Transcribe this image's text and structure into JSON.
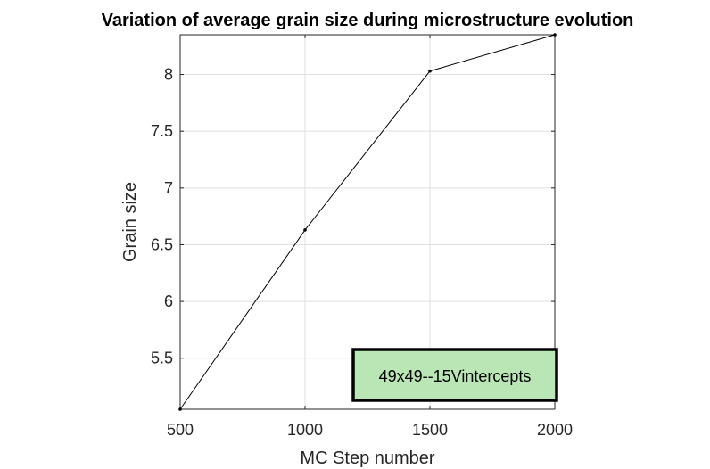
{
  "chart_data": {
    "type": "line",
    "title": "Variation of average grain size during microstructure evolution",
    "xlabel": "MC Step number",
    "ylabel": "Grain size",
    "xlim": [
      500,
      2000
    ],
    "ylim": [
      5.05,
      8.35
    ],
    "xticks": [
      500,
      1000,
      1500,
      2000
    ],
    "xtick_labels": [
      "500",
      "1000",
      "1500",
      "2000"
    ],
    "yticks": [
      5.5,
      6,
      6.5,
      7,
      7.5,
      8
    ],
    "ytick_labels": [
      "5.5",
      "6",
      "6.5",
      "7",
      "7.5",
      "8"
    ],
    "grid": true,
    "series": [
      {
        "x": [
          500,
          1000,
          1500,
          2000
        ],
        "y": [
          5.05,
          6.63,
          8.03,
          8.35
        ],
        "color": "#000000",
        "marker": "dot"
      }
    ],
    "annotation": {
      "text": "49x49--15Vintercepts",
      "background": "#b9e6b4",
      "border": "#000000"
    }
  }
}
